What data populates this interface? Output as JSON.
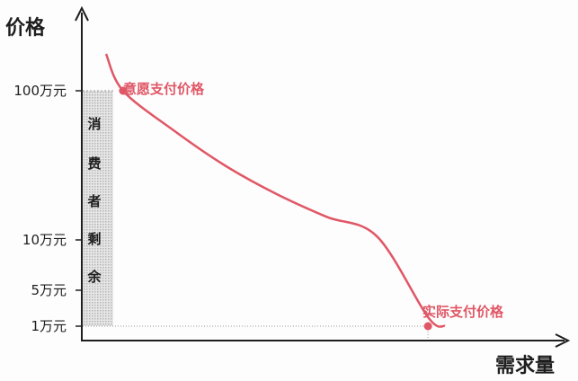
{
  "chart_data": {
    "type": "line",
    "xlabel": "需求量",
    "ylabel": "价格",
    "y_ticks": [
      {
        "value": 100,
        "label": "100万元"
      },
      {
        "value": 10,
        "label": "10万元"
      },
      {
        "value": 5,
        "label": "5万元"
      },
      {
        "value": 1,
        "label": "1万元"
      }
    ],
    "y_unit": "万元",
    "demand_curve": {
      "color": "#e05766",
      "points": [
        {
          "x": 0.0,
          "y": 110
        },
        {
          "x": 0.05,
          "y": 100
        },
        {
          "x": 0.2,
          "y": 76
        },
        {
          "x": 0.35,
          "y": 55
        },
        {
          "x": 0.5,
          "y": 38
        },
        {
          "x": 0.65,
          "y": 24
        },
        {
          "x": 0.8,
          "y": 12
        },
        {
          "x": 0.95,
          "y": 2
        },
        {
          "x": 1.0,
          "y": 1
        }
      ]
    },
    "annotations": [
      {
        "label": "意愿支付价格",
        "x": 0.05,
        "y": 100,
        "color": "#e05766"
      },
      {
        "label": "实际支付价格",
        "x": 0.95,
        "y": 1,
        "color": "#e05766"
      }
    ],
    "consumer_surplus": {
      "label_chars": [
        "消",
        "费",
        "者",
        "剩",
        "余"
      ],
      "y_from": 1,
      "y_to": 100,
      "fill": "#c9c9c9"
    },
    "colors": {
      "axis": "#1e1e1e",
      "accent": "#e05766",
      "guide": "#999999"
    }
  }
}
